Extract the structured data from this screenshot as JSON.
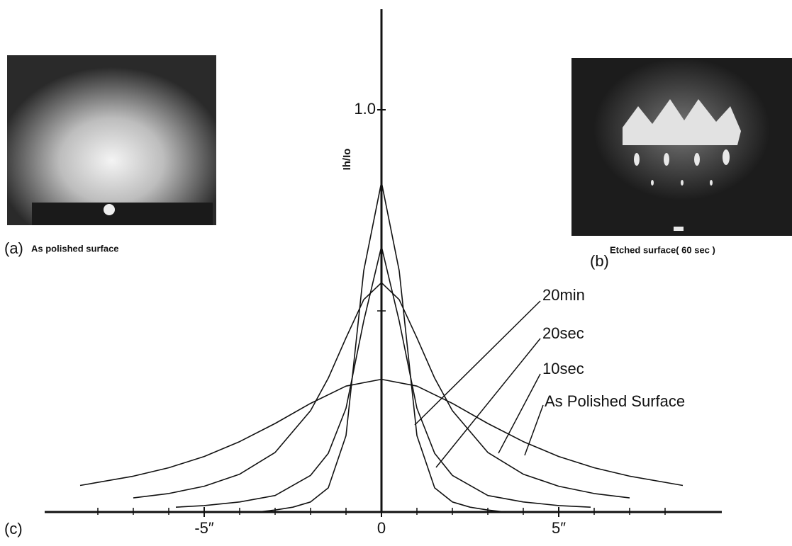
{
  "panels": {
    "a": {
      "letter": "(a)",
      "caption": "As polished surface"
    },
    "b": {
      "letter": "(b)",
      "caption": "Etched surface( 60 sec )"
    }
  },
  "chart_data": {
    "type": "line",
    "panel_letter": "(c)",
    "y_label": "Ih/Io",
    "xlim": [
      -9.5,
      9.6
    ],
    "ylim": [
      0,
      1.25
    ],
    "xticks": [
      {
        "value": -5,
        "label": "-5″"
      },
      {
        "value": 0,
        "label": "0"
      },
      {
        "value": 5,
        "label": "5″"
      }
    ],
    "minor_xticks": [
      -8,
      -7,
      -6,
      -4,
      -3,
      -2,
      -1,
      1,
      2,
      3,
      4,
      6,
      7,
      8
    ],
    "yticks": [
      {
        "value": 1.0,
        "label": "1.0"
      }
    ],
    "minor_yticks": [
      0.5
    ],
    "color": "#111",
    "series": [
      {
        "name": "20min",
        "x": [
          -3.5,
          -3,
          -2.5,
          -2,
          -1.5,
          -1,
          -0.5,
          0,
          0.5,
          1,
          1.5,
          2,
          2.5,
          3,
          3.5
        ],
        "values": [
          0.0,
          0.005,
          0.012,
          0.025,
          0.06,
          0.19,
          0.6,
          0.82,
          0.6,
          0.19,
          0.06,
          0.025,
          0.012,
          0.005,
          0.0
        ]
      },
      {
        "name": "20sec",
        "x": [
          -5.8,
          -5,
          -4,
          -3,
          -2,
          -1.5,
          -1,
          -0.5,
          0,
          0.5,
          1,
          1.5,
          2,
          3,
          4,
          5,
          5.9
        ],
        "values": [
          0.012,
          0.016,
          0.025,
          0.041,
          0.091,
          0.146,
          0.258,
          0.475,
          0.66,
          0.475,
          0.258,
          0.146,
          0.091,
          0.041,
          0.025,
          0.016,
          0.012
        ]
      },
      {
        "name": "10sec",
        "x": [
          -7,
          -6,
          -5,
          -4,
          -3,
          -2,
          -1.5,
          -1,
          -0.5,
          0,
          0.5,
          1,
          1.5,
          2,
          3,
          4,
          5,
          6,
          7
        ],
        "values": [
          0.035,
          0.046,
          0.064,
          0.094,
          0.148,
          0.252,
          0.333,
          0.433,
          0.528,
          0.57,
          0.528,
          0.433,
          0.333,
          0.252,
          0.148,
          0.094,
          0.064,
          0.046,
          0.035
        ]
      },
      {
        "name": "As Polished Surface",
        "x": [
          -8.5,
          -7,
          -6,
          -5,
          -4,
          -3,
          -2,
          -1,
          0,
          1,
          2,
          3,
          4,
          5,
          6,
          7,
          8.5
        ],
        "values": [
          0.066,
          0.089,
          0.11,
          0.138,
          0.175,
          0.22,
          0.27,
          0.313,
          0.33,
          0.313,
          0.27,
          0.22,
          0.175,
          0.138,
          0.11,
          0.089,
          0.066
        ]
      }
    ]
  }
}
